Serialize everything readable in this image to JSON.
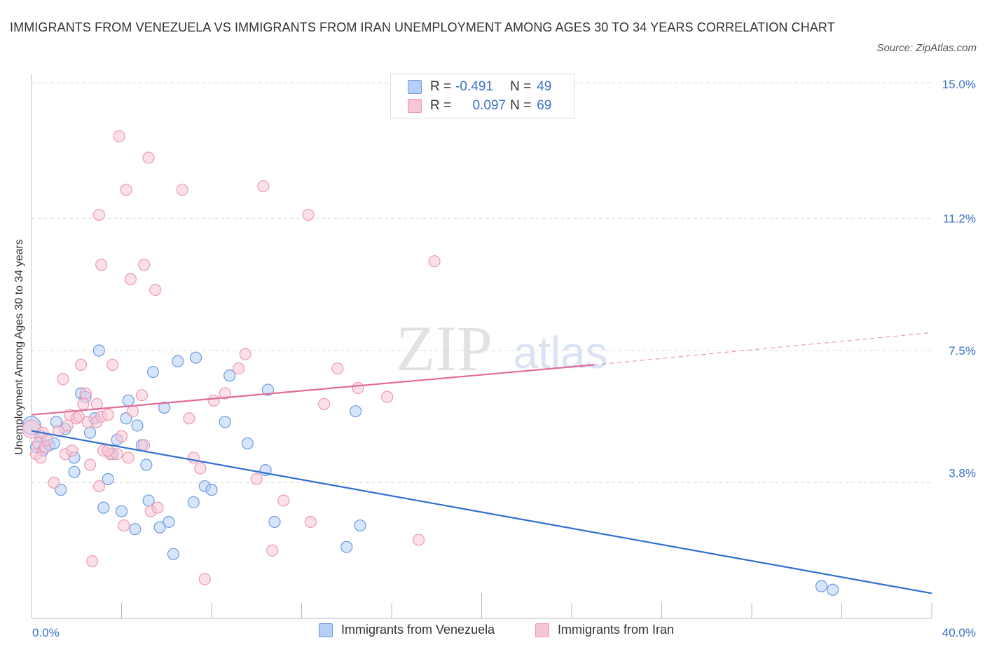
{
  "chart_data": {
    "type": "scatter",
    "title": "IMMIGRANTS FROM VENEZUELA VS IMMIGRANTS FROM IRAN UNEMPLOYMENT AMONG AGES 30 TO 34 YEARS CORRELATION CHART",
    "source": "Source: ZipAtlas.com",
    "xlabel": "",
    "ylabel": "Unemployment Among Ages 30 to 34 years",
    "xlim": [
      0,
      40
    ],
    "ylim": [
      0,
      15
    ],
    "x_tick_labels": [
      "0.0%",
      "40.0%"
    ],
    "y_ticks": [
      3.8,
      7.5,
      11.2,
      15.0
    ],
    "y_tick_labels": [
      "3.8%",
      "7.5%",
      "11.2%",
      "15.0%"
    ],
    "grid": true,
    "watermark": "ZIPatlas",
    "stats": [
      {
        "r_label": "R =",
        "r_value": "-0.491",
        "n_label": "N =",
        "n_value": "49"
      },
      {
        "r_label": "R =",
        "r_value": "0.097",
        "n_label": "N =",
        "n_value": "69"
      }
    ],
    "series": [
      {
        "name": "Immigrants from Venezuela",
        "color": "#6b9be0",
        "fill": "#b7cff5",
        "line_color": "#2f6fd1",
        "trend": {
          "x0": 0,
          "y0": 5.25,
          "x1": 40,
          "y1": 0.7
        },
        "points": [
          [
            0.0,
            5.4
          ],
          [
            0.4,
            5.1
          ],
          [
            0.2,
            4.8
          ],
          [
            0.5,
            4.7
          ],
          [
            0.8,
            4.85
          ],
          [
            1.0,
            4.9
          ],
          [
            1.1,
            5.5
          ],
          [
            1.5,
            5.3
          ],
          [
            1.3,
            3.6
          ],
          [
            1.9,
            4.1
          ],
          [
            1.9,
            4.5
          ],
          [
            2.2,
            6.3
          ],
          [
            2.4,
            6.2
          ],
          [
            2.6,
            5.2
          ],
          [
            2.8,
            5.6
          ],
          [
            3.0,
            7.5
          ],
          [
            3.2,
            3.1
          ],
          [
            3.4,
            3.9
          ],
          [
            3.6,
            4.6
          ],
          [
            3.8,
            5.0
          ],
          [
            4.0,
            3.0
          ],
          [
            4.2,
            5.6
          ],
          [
            4.3,
            6.1
          ],
          [
            4.6,
            2.5
          ],
          [
            4.7,
            5.4
          ],
          [
            4.9,
            4.85
          ],
          [
            5.1,
            4.3
          ],
          [
            5.2,
            3.3
          ],
          [
            5.4,
            6.9
          ],
          [
            5.7,
            2.55
          ],
          [
            5.9,
            5.9
          ],
          [
            6.1,
            2.7
          ],
          [
            6.3,
            1.8
          ],
          [
            6.5,
            7.2
          ],
          [
            7.2,
            3.25
          ],
          [
            7.3,
            7.3
          ],
          [
            7.7,
            3.7
          ],
          [
            8.0,
            3.6
          ],
          [
            8.6,
            5.5
          ],
          [
            8.8,
            6.8
          ],
          [
            9.6,
            4.9
          ],
          [
            10.4,
            4.15
          ],
          [
            10.5,
            6.4
          ],
          [
            10.8,
            2.7
          ],
          [
            14.0,
            2.0
          ],
          [
            14.4,
            5.8
          ],
          [
            14.6,
            2.6
          ],
          [
            35.1,
            0.9
          ],
          [
            35.6,
            0.8
          ]
        ]
      },
      {
        "name": "Immigrants from Iran",
        "color": "#ec9ab5",
        "fill": "#f7c6d6",
        "line_color": "#e36a96",
        "trend": {
          "x0": 0,
          "y0": 5.7,
          "x1": 25,
          "y1": 7.1
        },
        "trend_ext": {
          "x0": 25,
          "y0": 7.1,
          "x1": 40,
          "y1": 8.0
        },
        "points": [
          [
            0.0,
            5.3
          ],
          [
            0.2,
            4.6
          ],
          [
            0.3,
            4.9
          ],
          [
            0.4,
            4.5
          ],
          [
            0.5,
            5.2
          ],
          [
            0.6,
            4.8
          ],
          [
            0.7,
            5.0
          ],
          [
            1.0,
            3.8
          ],
          [
            1.2,
            5.25
          ],
          [
            1.4,
            6.7
          ],
          [
            1.5,
            4.6
          ],
          [
            1.7,
            5.7
          ],
          [
            1.8,
            4.7
          ],
          [
            2.0,
            5.6
          ],
          [
            2.1,
            5.65
          ],
          [
            2.2,
            7.1
          ],
          [
            2.3,
            6.0
          ],
          [
            2.4,
            6.3
          ],
          [
            2.5,
            5.5
          ],
          [
            2.6,
            4.3
          ],
          [
            2.7,
            1.6
          ],
          [
            2.9,
            5.5
          ],
          [
            3.0,
            3.7
          ],
          [
            3.0,
            11.3
          ],
          [
            3.1,
            5.65
          ],
          [
            3.1,
            9.9
          ],
          [
            3.2,
            4.7
          ],
          [
            3.4,
            5.7
          ],
          [
            3.5,
            4.6
          ],
          [
            3.6,
            7.1
          ],
          [
            3.8,
            4.6
          ],
          [
            3.9,
            13.5
          ],
          [
            4.0,
            5.1
          ],
          [
            4.1,
            2.6
          ],
          [
            4.2,
            12.0
          ],
          [
            4.3,
            4.5
          ],
          [
            4.4,
            9.5
          ],
          [
            4.5,
            5.8
          ],
          [
            4.9,
            6.25
          ],
          [
            5.0,
            4.85
          ],
          [
            5.0,
            9.9
          ],
          [
            5.2,
            12.9
          ],
          [
            5.3,
            3.0
          ],
          [
            5.5,
            9.2
          ],
          [
            5.6,
            3.1
          ],
          [
            6.7,
            12.0
          ],
          [
            7.0,
            5.6
          ],
          [
            7.2,
            4.5
          ],
          [
            7.5,
            4.2
          ],
          [
            7.7,
            1.1
          ],
          [
            8.1,
            6.1
          ],
          [
            8.6,
            6.3
          ],
          [
            9.2,
            7.0
          ],
          [
            9.5,
            7.4
          ],
          [
            10.0,
            3.9
          ],
          [
            10.3,
            12.1
          ],
          [
            10.7,
            1.9
          ],
          [
            11.2,
            3.3
          ],
          [
            12.3,
            11.3
          ],
          [
            12.4,
            2.7
          ],
          [
            13.0,
            6.0
          ],
          [
            13.6,
            7.0
          ],
          [
            14.5,
            6.45
          ],
          [
            15.8,
            6.2
          ],
          [
            17.2,
            2.2
          ],
          [
            17.9,
            10.0
          ],
          [
            3.4,
            4.7
          ],
          [
            2.9,
            6.0
          ],
          [
            1.6,
            5.4
          ]
        ]
      }
    ]
  }
}
